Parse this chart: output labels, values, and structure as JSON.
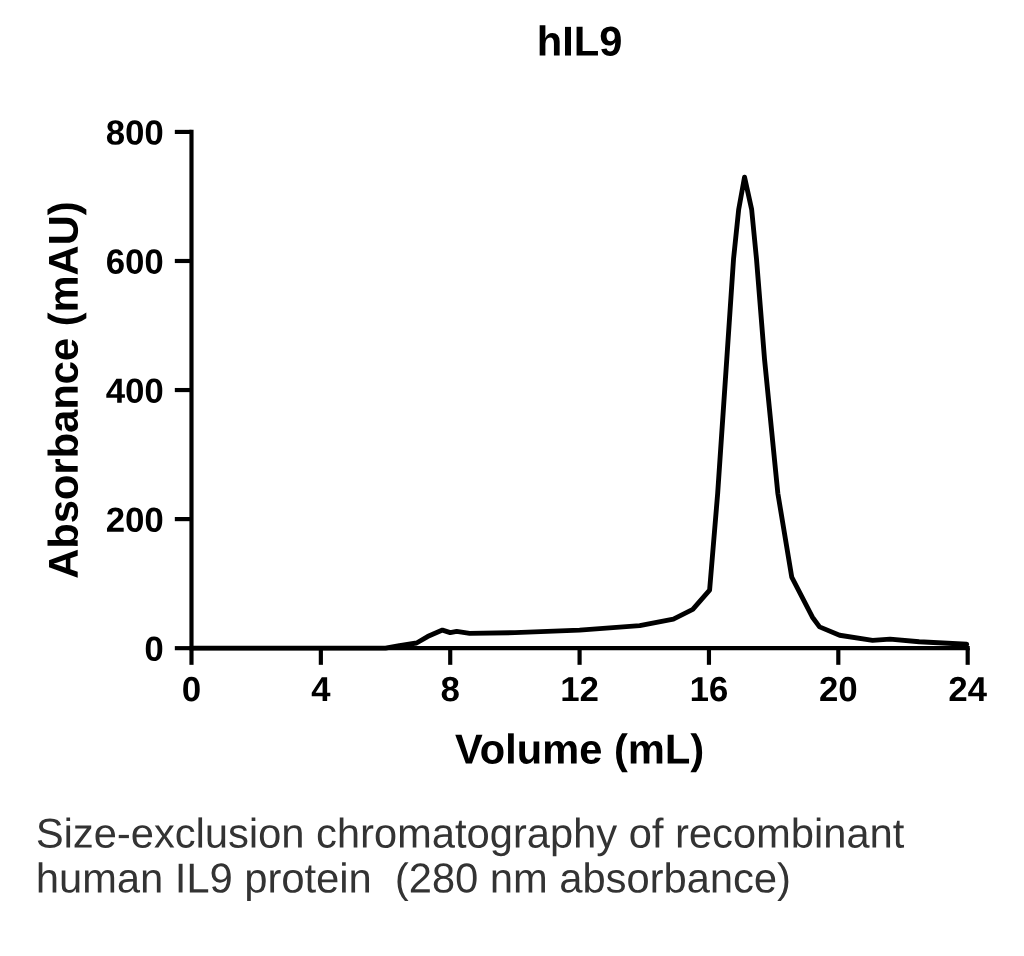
{
  "chart_data": {
    "type": "line",
    "title": "hIL9",
    "xlabel": "Volume (mL)",
    "ylabel": "Absorbance (mAU)",
    "xlim": [
      0,
      24
    ],
    "xticks": [
      0,
      4,
      8,
      12,
      16,
      20,
      24
    ],
    "ylim": [
      0,
      800
    ],
    "yticks": [
      0,
      200,
      400,
      600,
      800
    ],
    "grid": false,
    "legend": false,
    "marker": "none",
    "line_style": "solid",
    "series": [
      {
        "color": "#000000",
        "x": [
          0,
          3,
          6.0,
          6.43,
          6.96,
          7.3,
          7.76,
          8.0,
          8.2,
          8.6,
          10,
          12.0,
          13.86,
          14.9,
          15.5,
          16.02,
          16.27,
          16.55,
          16.76,
          16.92,
          17.1,
          17.32,
          17.47,
          17.72,
          18.13,
          18.56,
          19.2,
          19.42,
          20.04,
          21.06,
          21.6,
          22.5,
          23.97
        ],
        "values": [
          0,
          0,
          0,
          4,
          8,
          18,
          28,
          24,
          26,
          23,
          24,
          28,
          35,
          45,
          60,
          90,
          240,
          447,
          603,
          680,
          730,
          680,
          603,
          447,
          240,
          110,
          48,
          33,
          20,
          12,
          14,
          10,
          6
        ]
      }
    ],
    "annotations": [
      "Size-exclusion chromatography of recombinant human IL9 protein  (280 nm absorbance)"
    ]
  }
}
